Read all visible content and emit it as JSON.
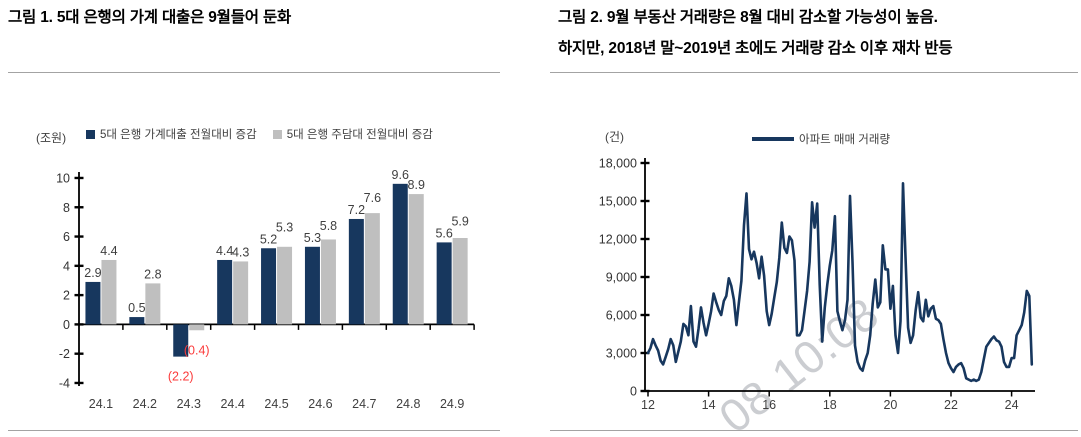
{
  "page": {
    "background": "#ffffff"
  },
  "figure1": {
    "title": "그림 1. 5대 은행의 가계 대출은 9월들어 둔화",
    "unit_label": "(조원)",
    "legend": [
      {
        "label": "5대 은행 가계대출 전월대비 증감",
        "color": "#17375e"
      },
      {
        "label": "5대 은행 주담대 전월대비 증감",
        "color": "#bfbfbf"
      }
    ]
  },
  "figure2": {
    "title_line1": "그림 2. 9월 부동산 거래량은 8월 대비 감소할 가능성이 높음.",
    "title_line2": "하지만, 2018년 말~2019년 초에도 거래량 감소 이후 재차 반등",
    "unit_label": "(건)",
    "legend": [
      {
        "label": "아파트 매매 거래량",
        "color": "#17375e"
      }
    ],
    "watermark": "08 10:08"
  },
  "chart_data": [
    {
      "type": "bar",
      "title": "그림 1. 5대 은행의 가계 대출은 9월들어 둔화",
      "unit": "조원",
      "categories": [
        "24.1",
        "24.2",
        "24.3",
        "24.4",
        "24.5",
        "24.6",
        "24.7",
        "24.8",
        "24.9"
      ],
      "series": [
        {
          "name": "5대 은행 가계대출 전월대비 증감",
          "color": "#17375e",
          "values": [
            2.9,
            0.5,
            -2.2,
            4.4,
            5.2,
            5.3,
            7.2,
            9.6,
            5.6
          ],
          "labels": [
            "2.9",
            "0.5",
            "(2.2)",
            "4.4",
            "5.2",
            "5.3",
            "7.2",
            "9.6",
            "5.6"
          ]
        },
        {
          "name": "5대 은행 주담대 전월대비 증감",
          "color": "#bfbfbf",
          "values": [
            4.4,
            2.8,
            -0.4,
            4.3,
            5.3,
            5.8,
            7.6,
            8.9,
            5.9
          ],
          "labels": [
            "4.4",
            "2.8",
            "(0.4)",
            "4.3",
            "5.3",
            "5.8",
            "7.6",
            "8.9",
            "5.9"
          ]
        }
      ],
      "ylim": [
        -4,
        10
      ],
      "ytick_step": 2,
      "label_color": "#3f3f3f",
      "negative_label_color": "#fb3b3b",
      "legend_position": "top",
      "grid": false
    },
    {
      "type": "line",
      "name": "아파트 매매 거래량",
      "unit": "건",
      "color": "#17375e",
      "x_start_year": 2012,
      "x_frequency": "monthly",
      "x_end": "2024-09",
      "values": [
        3000,
        3400,
        4100,
        3600,
        3200,
        2400,
        2100,
        2700,
        3300,
        4100,
        3600,
        2300,
        3100,
        3900,
        5300,
        5100,
        4400,
        6700,
        3900,
        3500,
        4900,
        6600,
        5400,
        4400,
        5300,
        6300,
        7700,
        7000,
        6400,
        6000,
        7100,
        7500,
        8900,
        8300,
        7200,
        5200,
        7000,
        8700,
        13100,
        15600,
        11200,
        10400,
        11000,
        10100,
        8900,
        10600,
        9100,
        6300,
        5200,
        6100,
        7400,
        8600,
        10500,
        13300,
        11300,
        10900,
        12200,
        11900,
        10300,
        4400,
        4400,
        4800,
        6300,
        7900,
        10200,
        14900,
        12900,
        14800,
        8400,
        3900,
        6600,
        8400,
        9900,
        11100,
        13800,
        6300,
        5500,
        4800,
        5600,
        7200,
        15400,
        10200,
        3600,
        2300,
        1800,
        1600,
        2400,
        3000,
        4400,
        6900,
        8800,
        6600,
        7000,
        11500,
        9600,
        9600,
        6500,
        8300,
        4400,
        3000,
        5500,
        16400,
        10600,
        5000,
        3800,
        4400,
        6400,
        7800,
        5800,
        5500,
        7200,
        5900,
        6500,
        6700,
        5700,
        5600,
        5300,
        4100,
        3000,
        2200,
        1800,
        1500,
        1900,
        2100,
        2200,
        1800,
        1000,
        900,
        800,
        900,
        800,
        900,
        1500,
        2500,
        3500,
        3800,
        4100,
        4300,
        4000,
        3900,
        3500,
        2300,
        1900,
        1900,
        2600,
        2600,
        4400,
        4800,
        5200,
        6200,
        7900,
        7500,
        2100
      ],
      "ylim": [
        0,
        18000
      ],
      "ytick_step": 3000,
      "yticklabels": [
        "0",
        "3,000",
        "6,000",
        "9,000",
        "12,000",
        "15,000",
        "18,000"
      ],
      "xticklabels": [
        "12",
        "14",
        "16",
        "18",
        "20",
        "22",
        "24"
      ],
      "legend_position": "top",
      "grid": false
    }
  ]
}
